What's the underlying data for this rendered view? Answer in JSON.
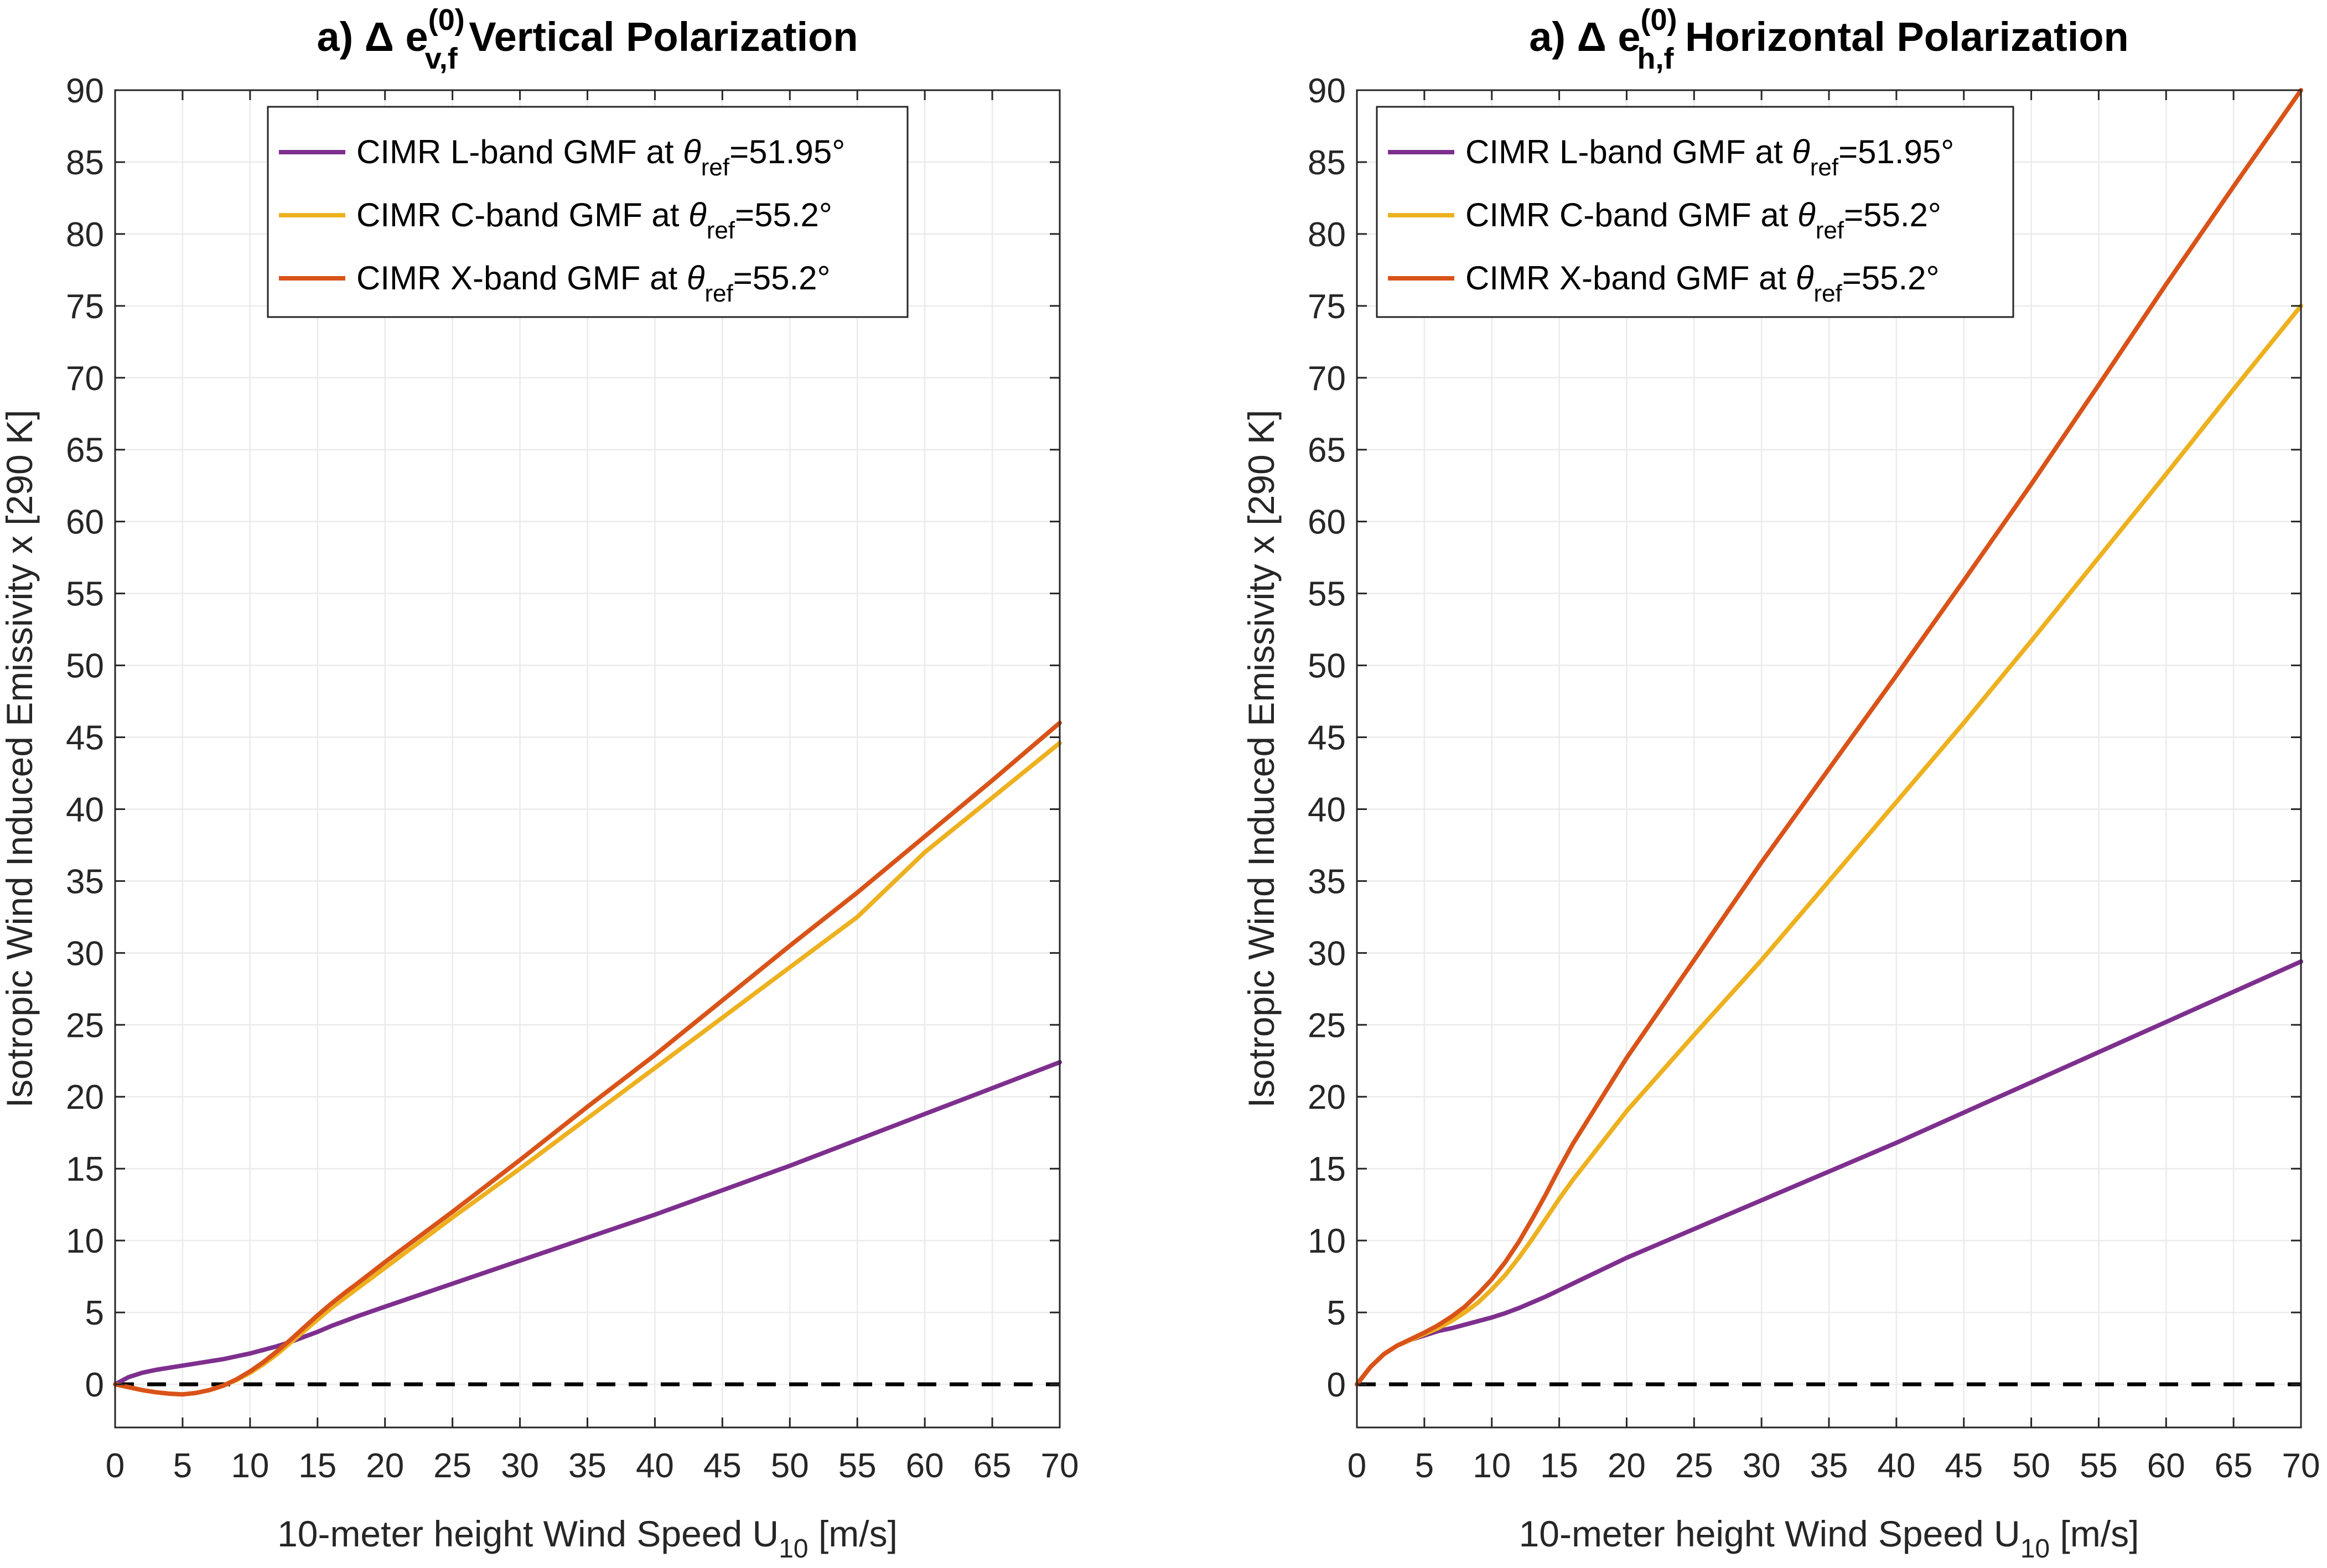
{
  "figure": {
    "background": "#ffffff",
    "grid_color": "#ebebeb",
    "axis_color": "#262626"
  },
  "chart_data": [
    {
      "type": "line",
      "title": {
        "prefix": "a) Δ e",
        "superscript": "(0)",
        "subscript": "v,f",
        "suffix": " Vertical Polarization"
      },
      "xlabel": {
        "main": "10-meter height Wind Speed U",
        "sub": "10",
        "tail": " [m/s]"
      },
      "ylabel": "Isotropic Wind Induced Emissivity  x [290 K]",
      "xlim": [
        0,
        70
      ],
      "ylim": [
        -3,
        90
      ],
      "xticks": [
        0,
        5,
        10,
        15,
        20,
        25,
        30,
        35,
        40,
        45,
        50,
        55,
        60,
        65,
        70
      ],
      "yticks": [
        0,
        5,
        10,
        15,
        20,
        25,
        30,
        35,
        40,
        45,
        50,
        55,
        60,
        65,
        70,
        75,
        80,
        85,
        90
      ],
      "grid": true,
      "legend_position": "top-center",
      "zero_line": {
        "y": 0,
        "style": "dashed",
        "color": "#000000"
      },
      "series": [
        {
          "name": {
            "pre": "CIMR L-band GMF at ",
            "sym": "θ",
            "sub": "ref",
            "post": "=51.95°"
          },
          "color": "#7e2f8e",
          "x": [
            0,
            1,
            2,
            3,
            4,
            5,
            6,
            7,
            8,
            9,
            10,
            11,
            12,
            13,
            14,
            15,
            16,
            17,
            18,
            20,
            25,
            30,
            35,
            40,
            45,
            50,
            55,
            60,
            65,
            70
          ],
          "y": [
            0,
            0.5,
            0.8,
            1.0,
            1.15,
            1.3,
            1.45,
            1.6,
            1.75,
            1.95,
            2.15,
            2.4,
            2.65,
            2.95,
            3.3,
            3.65,
            4.05,
            4.4,
            4.75,
            5.4,
            7.0,
            8.6,
            10.2,
            11.8,
            13.5,
            15.2,
            17.0,
            18.8,
            20.6,
            22.4
          ]
        },
        {
          "name": {
            "pre": "CIMR C-band GMF at ",
            "sym": "θ",
            "sub": "ref",
            "post": "=55.2°"
          },
          "color": "#edb120",
          "x": [
            0,
            1,
            2,
            3,
            4,
            5,
            6,
            7,
            8,
            9,
            10,
            11,
            12,
            13,
            14,
            15,
            16,
            17,
            18,
            20,
            25,
            30,
            35,
            40,
            45,
            50,
            55,
            60,
            65,
            70
          ],
          "y": [
            0,
            -0.2,
            -0.4,
            -0.55,
            -0.65,
            -0.7,
            -0.6,
            -0.4,
            -0.1,
            0.3,
            0.8,
            1.4,
            2.1,
            2.9,
            3.7,
            4.5,
            5.3,
            6.0,
            6.7,
            8.1,
            11.6,
            15.0,
            18.5,
            22.0,
            25.5,
            29.0,
            32.5,
            37.0,
            40.8,
            44.6
          ]
        },
        {
          "name": {
            "pre": "CIMR X-band GMF at ",
            "sym": "θ",
            "sub": "ref",
            "post": "=55.2°"
          },
          "color": "#d95319",
          "x": [
            0,
            1,
            2,
            3,
            4,
            5,
            6,
            7,
            8,
            9,
            10,
            11,
            12,
            13,
            14,
            15,
            16,
            17,
            18,
            20,
            25,
            30,
            35,
            40,
            45,
            50,
            55,
            60,
            65,
            70
          ],
          "y": [
            0,
            -0.2,
            -0.4,
            -0.55,
            -0.65,
            -0.7,
            -0.6,
            -0.4,
            -0.1,
            0.35,
            0.9,
            1.55,
            2.3,
            3.1,
            3.95,
            4.8,
            5.6,
            6.35,
            7.05,
            8.5,
            12.0,
            15.6,
            19.3,
            22.9,
            26.7,
            30.5,
            34.2,
            38.1,
            42.0,
            46.0
          ]
        }
      ]
    },
    {
      "type": "line",
      "title": {
        "prefix": "a) Δ e",
        "superscript": "(0)",
        "subscript": "h,f",
        "suffix": " Horizontal Polarization"
      },
      "xlabel": {
        "main": "10-meter height Wind Speed U",
        "sub": "10",
        "tail": " [m/s]"
      },
      "ylabel": "Isotropic Wind Induced Emissivity  x [290 K]",
      "xlim": [
        0,
        70
      ],
      "ylim": [
        -3,
        90
      ],
      "xticks": [
        0,
        5,
        10,
        15,
        20,
        25,
        30,
        35,
        40,
        45,
        50,
        55,
        60,
        65,
        70
      ],
      "yticks": [
        0,
        5,
        10,
        15,
        20,
        25,
        30,
        35,
        40,
        45,
        50,
        55,
        60,
        65,
        70,
        75,
        80,
        85,
        90
      ],
      "grid": true,
      "legend_position": "top-left",
      "zero_line": {
        "y": 0,
        "style": "dashed",
        "color": "#000000"
      },
      "series": [
        {
          "name": {
            "pre": "CIMR L-band GMF at ",
            "sym": "θ",
            "sub": "ref",
            "post": "=51.95°"
          },
          "color": "#7e2f8e",
          "x": [
            0,
            1,
            2,
            3,
            4,
            5,
            6,
            7,
            8,
            9,
            10,
            11,
            12,
            13,
            14,
            15,
            16,
            17,
            18,
            20,
            25,
            30,
            35,
            40,
            45,
            50,
            55,
            60,
            65,
            70
          ],
          "y": [
            0,
            1.2,
            2.1,
            2.7,
            3.1,
            3.4,
            3.7,
            3.9,
            4.15,
            4.4,
            4.65,
            4.95,
            5.3,
            5.7,
            6.1,
            6.55,
            7.0,
            7.45,
            7.9,
            8.8,
            10.8,
            12.8,
            14.8,
            16.8,
            18.9,
            21.0,
            23.1,
            25.2,
            27.3,
            29.4
          ]
        },
        {
          "name": {
            "pre": "CIMR C-band GMF at ",
            "sym": "θ",
            "sub": "ref",
            "post": "=55.2°"
          },
          "color": "#edb120",
          "x": [
            0,
            1,
            2,
            3,
            4,
            5,
            6,
            7,
            8,
            9,
            10,
            11,
            12,
            13,
            14,
            15,
            16,
            17,
            18,
            20,
            25,
            30,
            35,
            40,
            45,
            50,
            55,
            60,
            65,
            70
          ],
          "y": [
            0,
            1.2,
            2.1,
            2.7,
            3.1,
            3.5,
            3.9,
            4.4,
            5.0,
            5.7,
            6.6,
            7.6,
            8.8,
            10.1,
            11.5,
            12.9,
            14.2,
            15.4,
            16.6,
            19.0,
            24.3,
            29.5,
            35.0,
            40.5,
            46.0,
            51.7,
            57.5,
            63.3,
            69.2,
            75.0
          ]
        },
        {
          "name": {
            "pre": "CIMR X-band GMF at ",
            "sym": "θ",
            "sub": "ref",
            "post": "=55.2°"
          },
          "color": "#d95319",
          "x": [
            0,
            1,
            2,
            3,
            4,
            5,
            6,
            7,
            8,
            9,
            10,
            11,
            12,
            13,
            14,
            15,
            16,
            17,
            18,
            20,
            25,
            30,
            35,
            40,
            45,
            50,
            55,
            60,
            65,
            70
          ],
          "y": [
            0,
            1.2,
            2.1,
            2.7,
            3.15,
            3.6,
            4.1,
            4.7,
            5.4,
            6.3,
            7.3,
            8.5,
            9.9,
            11.5,
            13.2,
            15.0,
            16.7,
            18.2,
            19.7,
            22.7,
            29.5,
            36.3,
            42.8,
            49.3,
            55.9,
            62.6,
            69.5,
            76.5,
            83.3,
            90.0
          ]
        }
      ]
    }
  ]
}
